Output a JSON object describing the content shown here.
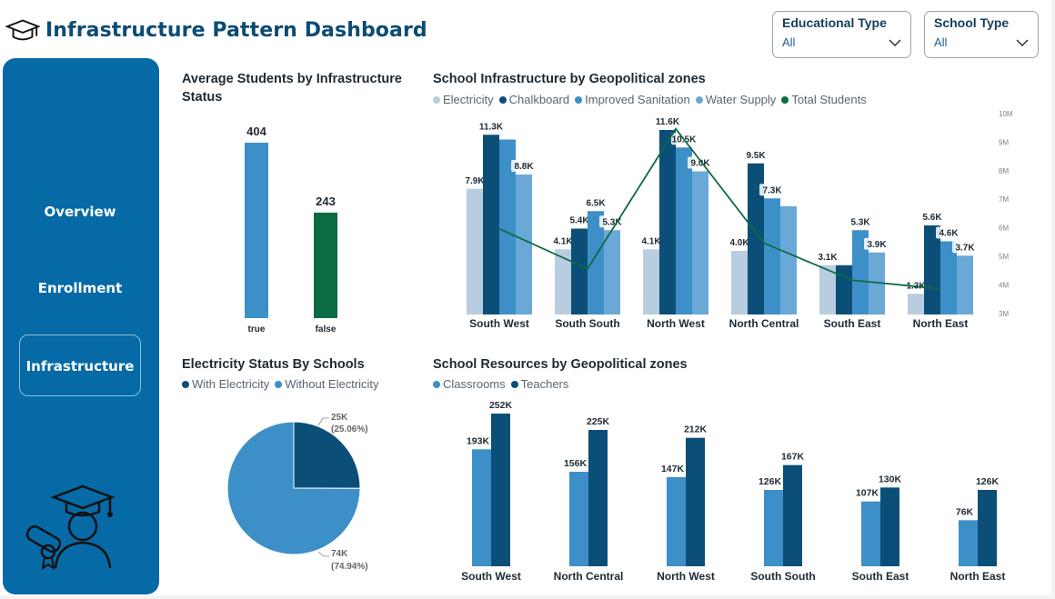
{
  "app": {
    "title": "Infrastructure Pattern Dashboard"
  },
  "colors": {
    "electricity": "#b8cde0",
    "chalkboard": "#0b4f78",
    "sanitation": "#3d8fc8",
    "water": "#6aa8d8",
    "students": "#0d6b43",
    "true_bar": "#3d8fc8",
    "false_bar": "#0d6b43",
    "sidebar": "#066aa6"
  },
  "filters": {
    "educational_type": {
      "label": "Educational Type",
      "value": "All"
    },
    "school_type": {
      "label": "School Type",
      "value": "All"
    }
  },
  "nav": {
    "items": [
      {
        "label": "Overview"
      },
      {
        "label": "Enrollment"
      },
      {
        "label": "Infrastructure"
      }
    ]
  },
  "panels": {
    "avg_students": {
      "title": "Average Students by Infrastructure Status",
      "chart_data": {
        "type": "bar",
        "categories": [
          "true",
          "false"
        ],
        "values": [
          404,
          243
        ],
        "labels": [
          "404",
          "243"
        ],
        "ylim": [
          0,
          450
        ]
      }
    },
    "infrastructure": {
      "title": "School Infrastructure by Geopolitical zones",
      "chart_data": {
        "type": "bar",
        "categories": [
          "South West",
          "South South",
          "North West",
          "North Central",
          "South East",
          "North East"
        ],
        "series": [
          {
            "name": "Electricity",
            "values": [
              7.9,
              4.1,
              4.1,
              4.0,
              3.1,
              1.3
            ],
            "labels": [
              "7.9K",
              "4.1K",
              "4.1K",
              "4.0K",
              "3.1K",
              "1.3K"
            ]
          },
          {
            "name": "Chalkboard",
            "values": [
              11.3,
              5.4,
              11.6,
              9.5,
              3.1,
              5.6
            ],
            "labels": [
              "11.3K",
              "5.4K",
              "11.6K",
              "9.5K",
              "",
              "5.6K"
            ]
          },
          {
            "name": "Improved Sanitation",
            "values": [
              11.0,
              6.5,
              10.5,
              7.3,
              5.3,
              4.6
            ],
            "labels": [
              "",
              "6.5K",
              "10.5K",
              "7.3K",
              "5.3K",
              "4.6K"
            ]
          },
          {
            "name": "Water Supply",
            "values": [
              8.8,
              5.3,
              9.0,
              6.8,
              3.9,
              3.7
            ],
            "labels": [
              "8.8K",
              "5.3K",
              "9.0K",
              "",
              "3.9K",
              "3.7K"
            ]
          },
          {
            "name": "Total Students",
            "type": "line",
            "values": [
              6.0,
              4.6,
              9.5,
              5.5,
              4.2,
              3.9
            ]
          }
        ],
        "ylim": [
          0,
          12
        ],
        "y2_ticks": [
          "10M",
          "9M",
          "8M",
          "7M",
          "6M",
          "5M",
          "4M",
          "3M"
        ],
        "y2lim": [
          3,
          10
        ]
      }
    },
    "electricity": {
      "title": "Electricity Status By Schools",
      "chart_data": {
        "type": "pie",
        "slices": [
          {
            "name": "With Electricity",
            "value": 25.06,
            "label": "25K",
            "pct": "(25.06%)"
          },
          {
            "name": "Without Electricity",
            "value": 74.94,
            "label": "74K",
            "pct": "(74.94%)"
          }
        ]
      }
    },
    "resources": {
      "title": "School Resources by Geopolitical zones",
      "chart_data": {
        "type": "bar",
        "categories": [
          "South West",
          "North Central",
          "North West",
          "South South",
          "South East",
          "North East"
        ],
        "series": [
          {
            "name": "Classrooms",
            "values": [
              193,
              156,
              147,
              126,
              107,
              76
            ],
            "labels": [
              "193K",
              "156K",
              "147K",
              "126K",
              "107K",
              "76K"
            ]
          },
          {
            "name": "Teachers",
            "values": [
              252,
              225,
              212,
              167,
              130,
              126
            ],
            "labels": [
              "252K",
              "225K",
              "212K",
              "167K",
              "130K",
              "126K"
            ]
          }
        ],
        "ylim": [
          0,
          270
        ]
      }
    }
  }
}
